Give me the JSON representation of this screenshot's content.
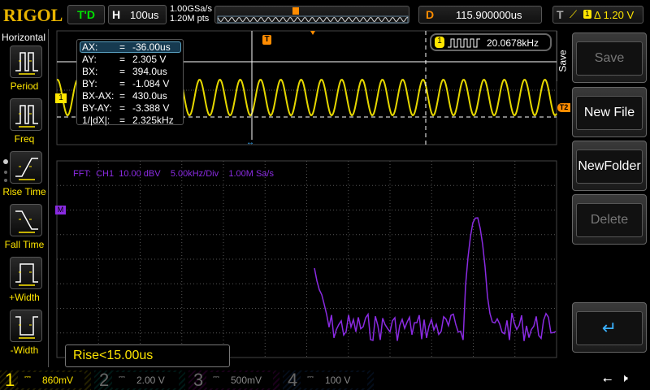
{
  "header": {
    "logo": "RIGOL",
    "run_status": "T'D",
    "timebase_label": "H",
    "timebase": "100us",
    "sample_rate": "1.00GSa/s",
    "memory_depth": "1.20M pts",
    "delay_label": "D",
    "delay": "115.900000us",
    "trigger_label": "T",
    "trigger_source": "1",
    "trigger_level": "Δ 1.20 V"
  },
  "left_menu": {
    "title": "Horizontal",
    "items": [
      {
        "label": "Period"
      },
      {
        "label": "Freq"
      },
      {
        "label": "Rise Time"
      },
      {
        "label": "Fall Time"
      },
      {
        "label": "+Width"
      },
      {
        "label": "-Width"
      }
    ]
  },
  "cursor_table": {
    "rows": [
      {
        "k": "AX:",
        "v": "-36.00us"
      },
      {
        "k": "AY:",
        "v": "2.305 V"
      },
      {
        "k": "BX:",
        "v": "394.0us"
      },
      {
        "k": "BY:",
        "v": "-1.084 V"
      },
      {
        "k": "BX-AX:",
        "v": "430.0us"
      },
      {
        "k": "BY-AY:",
        "v": "-3.388 V"
      },
      {
        "k": "1/|dX|:",
        "v": "2.325kHz"
      }
    ],
    "eq": "="
  },
  "freq_counter": {
    "channel": "1",
    "value": "20.0678kHz"
  },
  "fft": {
    "label": "FFT:  CH1  10.00 dBV    5.00kHz/Div    1.00M Sa/s",
    "marker": "M"
  },
  "markers": {
    "ch1": "1",
    "trigger_pos": "T",
    "trigger_level": "T2"
  },
  "measurement": "Rise<15.00us",
  "right_menu": {
    "title": "Save",
    "buttons": [
      {
        "label": "Save",
        "enabled": false
      },
      {
        "label": "New File",
        "enabled": true
      },
      {
        "label": "NewFolder",
        "enabled": true
      },
      {
        "label": "Delete",
        "enabled": false
      }
    ]
  },
  "channels": [
    {
      "num": "1",
      "scale": "860mV",
      "color": "#ffe600",
      "active": true
    },
    {
      "num": "2",
      "scale": "2.00 V",
      "color": "#00b0a0",
      "active": false
    },
    {
      "num": "3",
      "scale": "500mV",
      "color": "#c000c0",
      "active": false
    },
    {
      "num": "4",
      "scale": "100 V",
      "color": "#2060c0",
      "active": false
    }
  ],
  "colors": {
    "ch1": "#ffe600",
    "fft": "#8a2be2",
    "trigger": "#ff8c00",
    "accent": "#e8b400"
  }
}
